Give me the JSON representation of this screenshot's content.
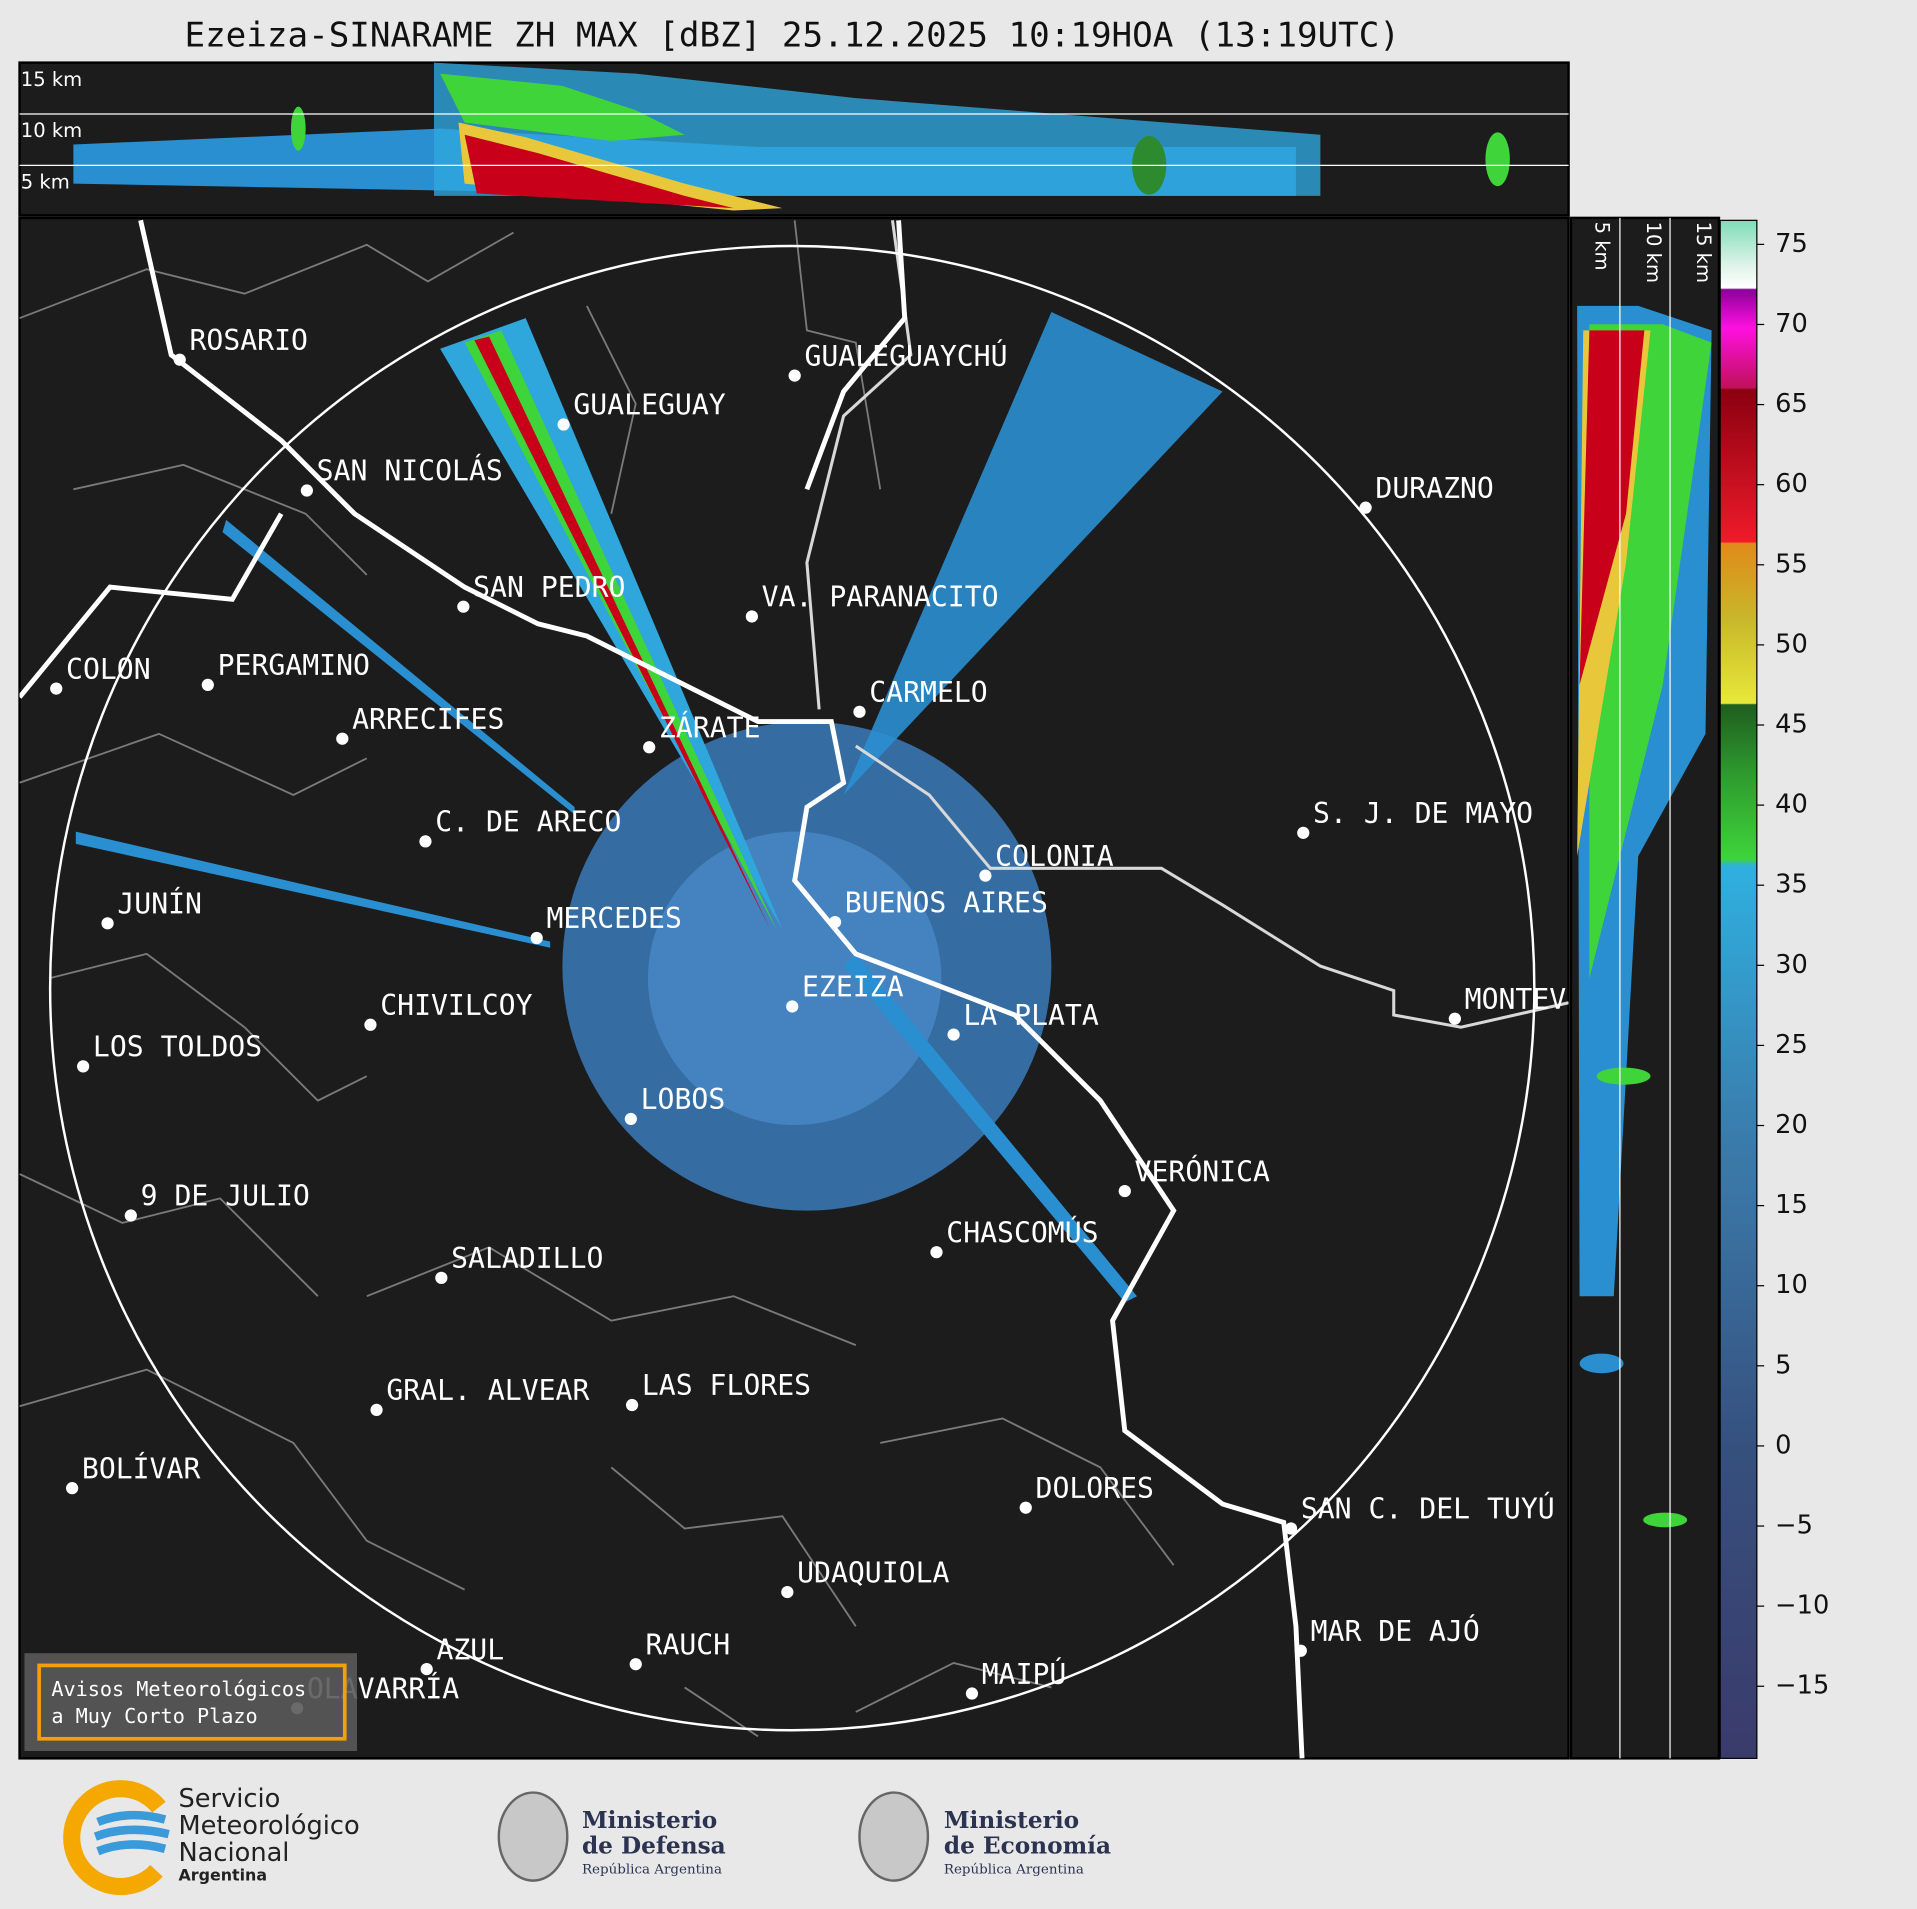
{
  "title": "Ezeiza-SINARAME ZH MAX [dBZ] 25.12.2025 10:19HOA (13:19UTC)",
  "top_section": {
    "height_labels": [
      "15 km",
      "10 km",
      "5 km"
    ]
  },
  "side_section": {
    "height_labels": [
      "5 km",
      "10 km",
      "15 km"
    ]
  },
  "colorbar": {
    "lim": [
      -19.5,
      76.5
    ],
    "ticks": [
      75,
      70,
      65,
      60,
      55,
      50,
      45,
      40,
      35,
      30,
      25,
      20,
      15,
      10,
      5,
      0,
      {
        "value": -5,
        "label": "−5"
      },
      {
        "value": -10,
        "label": "−10"
      },
      {
        "value": -15,
        "label": "−15"
      }
    ]
  },
  "cities": [
    "ROSARIO",
    "GUALEGUAYCHÚ",
    "GUALEGUAY",
    "SAN NICOLÁS",
    "DURAZNO",
    "SAN PEDRO",
    "VA. PARANACITO",
    "COLON",
    "PERGAMINO",
    "CARMELO",
    "ARRECIFES",
    "ZÁRATE",
    "C. DE ARECO",
    "S. J. DE MAYO",
    "COLONIA",
    "JUNÍN",
    "BUENOS AIRES",
    "MERCEDES",
    "EZEIZA",
    "CHIVILCOY",
    "MONTEVIDEO",
    "LA PLATA",
    "LOS TOLDOS",
    "LOBOS",
    "VERÓNICA",
    "9 DE JULIO",
    "CHASCOMÚS",
    "SALADILLO",
    "GRAL. ALVEAR",
    "LAS FLORES",
    "BOLÍVAR",
    "DOLORES",
    "SAN C. DEL TUYÚ",
    "UDAQUIOLA",
    "MAR DE AJÓ",
    "AZUL",
    "RAUCH",
    "OLAVARRÍA",
    "MAIPÚ"
  ],
  "notice": [
    "Avisos Meteorológicos",
    "a Muy Corto Plazo"
  ],
  "logos": {
    "smn": [
      "Servicio",
      "Meteorológico",
      "Nacional",
      "Argentina"
    ],
    "defensa": [
      "Ministerio",
      "de Defensa",
      "República Argentina"
    ],
    "economia": [
      "Ministerio",
      "de Economía",
      "República Argentina"
    ]
  }
}
